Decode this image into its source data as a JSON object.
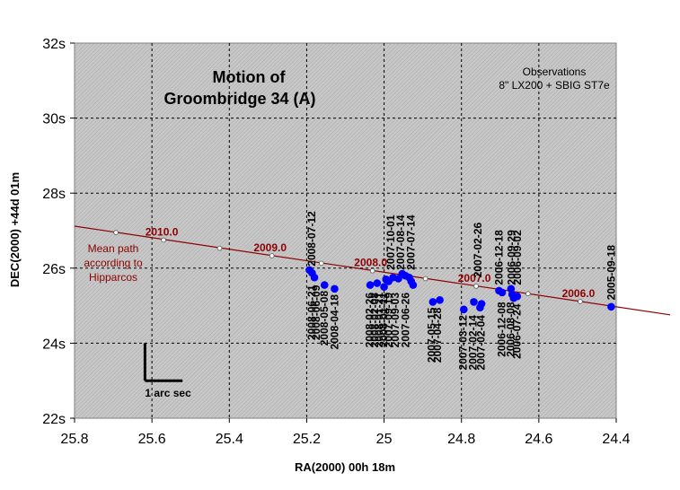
{
  "chart_data": {
    "type": "scatter",
    "title_lines": [
      "Motion of",
      "Groombridge 34 (A)"
    ],
    "annotation_lines": [
      "Observations",
      "8\" LX200 + SBIG ST7e"
    ],
    "xlabel": "RA(2000) 00h 18m",
    "ylabel": "DEC(2000) +44d 01m",
    "xlim": [
      25.8,
      24.4
    ],
    "ylim": [
      22,
      32
    ],
    "x_reversed": true,
    "grid": true,
    "xticks": [
      25.8,
      25.6,
      25.4,
      25.2,
      25.0,
      24.8,
      24.6,
      24.4
    ],
    "xtick_labels": [
      "25.8",
      "25.6",
      "25.4",
      "25.2",
      "25",
      "24.8",
      "24.6",
      "24.4"
    ],
    "yticks": [
      22,
      24,
      26,
      28,
      30,
      32
    ],
    "ytick_labels": [
      "22s",
      "24s",
      "26s",
      "28s",
      "30s",
      "32s"
    ],
    "colors": {
      "background": "#c0c0c0",
      "path": "#8b0000",
      "points": "#0000ff",
      "grid": "#000000"
    },
    "mean_path": {
      "label_lines": [
        "Mean path",
        "according to",
        "Hipparcos"
      ],
      "x": [
        25.8,
        25.693,
        25.57,
        25.425,
        25.29,
        25.162,
        25.03,
        24.893,
        24.762,
        24.628,
        24.493,
        24.4
      ],
      "y": [
        27.12,
        26.95,
        26.75,
        26.53,
        26.33,
        26.13,
        25.93,
        25.72,
        25.52,
        25.32,
        25.11,
        24.97
      ]
    },
    "epochs": [
      {
        "label": "2010.0",
        "x": 25.57,
        "y": 26.75
      },
      {
        "label": "2009.0",
        "x": 25.29,
        "y": 26.33
      },
      {
        "label": "2008.0",
        "x": 25.03,
        "y": 25.93
      },
      {
        "label": "2007.0",
        "x": 24.762,
        "y": 25.52
      },
      {
        "label": "2006.0",
        "x": 24.493,
        "y": 25.11
      }
    ],
    "observations": {
      "x": [
        25.193,
        25.186,
        25.18,
        25.154,
        25.128,
        25.036,
        25.018,
        25.0,
        24.995,
        24.988,
        24.977,
        24.963,
        24.953,
        24.945,
        24.935,
        24.93,
        24.925,
        24.874,
        24.856,
        24.794,
        24.768,
        24.752,
        24.748,
        24.703,
        24.695,
        24.672,
        24.669,
        24.665,
        24.656,
        24.413
      ],
      "y": [
        25.95,
        25.87,
        25.75,
        25.55,
        25.45,
        25.55,
        25.6,
        25.5,
        25.7,
        25.65,
        25.75,
        25.72,
        25.85,
        25.8,
        25.75,
        25.65,
        25.55,
        25.1,
        25.15,
        24.9,
        25.1,
        24.95,
        25.05,
        25.4,
        25.35,
        25.45,
        25.3,
        25.2,
        25.25,
        24.97
      ]
    },
    "date_labels": [
      {
        "text": "2008-07-12",
        "x": 25.187,
        "y": 26.05,
        "anchor": "start"
      },
      {
        "text": "2008-06-21",
        "x": 25.187,
        "y": 25.55,
        "anchor": "end"
      },
      {
        "text": "2008-06-09",
        "x": 25.175,
        "y": 25.55,
        "anchor": "end"
      },
      {
        "text": "2008-05-08",
        "x": 25.154,
        "y": 25.4,
        "anchor": "end"
      },
      {
        "text": "2008-04-18",
        "x": 25.128,
        "y": 25.3,
        "anchor": "end"
      },
      {
        "text": "2008-02-26",
        "x": 25.037,
        "y": 25.35,
        "anchor": "end"
      },
      {
        "text": "2008-02-08",
        "x": 25.025,
        "y": 25.35,
        "anchor": "end"
      },
      {
        "text": "2008-01-21",
        "x": 25.013,
        "y": 25.35,
        "anchor": "end"
      },
      {
        "text": "2008-01-11",
        "x": 25.001,
        "y": 25.35,
        "anchor": "end"
      },
      {
        "text": "2007-09-19",
        "x": 24.989,
        "y": 25.35,
        "anchor": "end"
      },
      {
        "text": "2007-10-01",
        "x": 24.983,
        "y": 25.95,
        "anchor": "start"
      },
      {
        "text": "2007-09-03",
        "x": 24.971,
        "y": 25.35,
        "anchor": "end"
      },
      {
        "text": "2007-08-14",
        "x": 24.957,
        "y": 25.95,
        "anchor": "start"
      },
      {
        "text": "2007-06-26",
        "x": 24.945,
        "y": 25.35,
        "anchor": "end"
      },
      {
        "text": "2007-07-14",
        "x": 24.93,
        "y": 25.95,
        "anchor": "start"
      },
      {
        "text": "2007-05-15",
        "x": 24.877,
        "y": 24.95,
        "anchor": "end"
      },
      {
        "text": "2007-04-28",
        "x": 24.862,
        "y": 24.95,
        "anchor": "end"
      },
      {
        "text": "2007-03-12",
        "x": 24.796,
        "y": 24.75,
        "anchor": "end"
      },
      {
        "text": "2007-02-26",
        "x": 24.758,
        "y": 25.75,
        "anchor": "start"
      },
      {
        "text": "2007-02-14",
        "x": 24.77,
        "y": 24.75,
        "anchor": "end"
      },
      {
        "text": "2007-02-04",
        "x": 24.75,
        "y": 24.75,
        "anchor": "end"
      },
      {
        "text": "2006-12-18",
        "x": 24.703,
        "y": 25.55,
        "anchor": "start"
      },
      {
        "text": "2006-12-08",
        "x": 24.696,
        "y": 25.1,
        "anchor": "end"
      },
      {
        "text": "2006-09-29",
        "x": 24.67,
        "y": 25.55,
        "anchor": "start"
      },
      {
        "text": "2006-08-08",
        "x": 24.673,
        "y": 25.1,
        "anchor": "end"
      },
      {
        "text": "2006-09-02",
        "x": 24.655,
        "y": 25.55,
        "anchor": "start"
      },
      {
        "text": "2006-07-24",
        "x": 24.656,
        "y": 25.05,
        "anchor": "end"
      },
      {
        "text": "2005-09-18",
        "x": 24.413,
        "y": 25.15,
        "anchor": "start"
      }
    ],
    "scale_bar": {
      "label": "1 arc sec",
      "x0": 25.618,
      "y0": 23.0,
      "length_arcsec": 1
    }
  }
}
